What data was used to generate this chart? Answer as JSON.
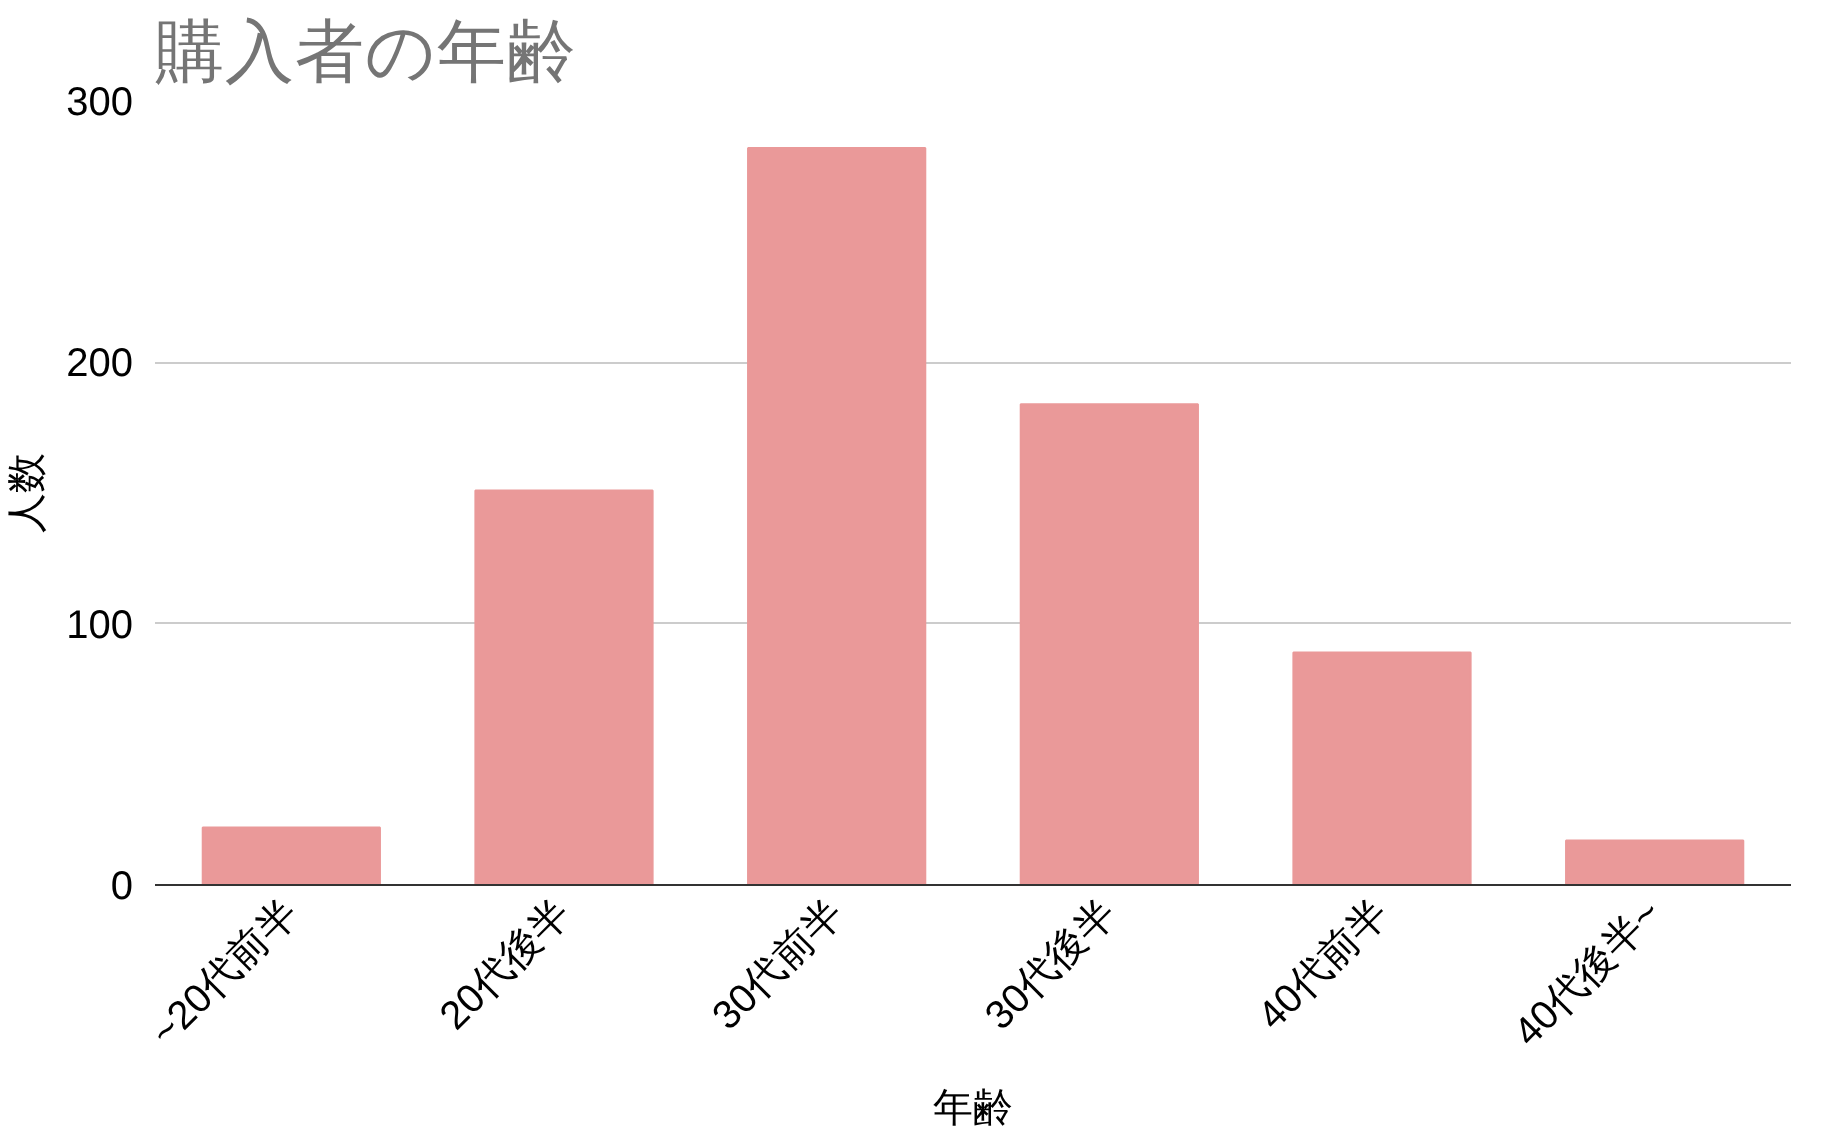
{
  "chart_data": {
    "type": "bar",
    "title": "購入者の年齢",
    "xlabel": "年齢",
    "ylabel": "人数",
    "categories": [
      "~20代前半",
      "20代後半",
      "30代前半",
      "30代後半",
      "40代前半",
      "40代後半~"
    ],
    "values": [
      22,
      151,
      282,
      184,
      89,
      17
    ],
    "color": "#ea9999",
    "ylim": [
      0,
      300
    ],
    "yticks": [
      0,
      100,
      200,
      300
    ],
    "grid": "y"
  }
}
